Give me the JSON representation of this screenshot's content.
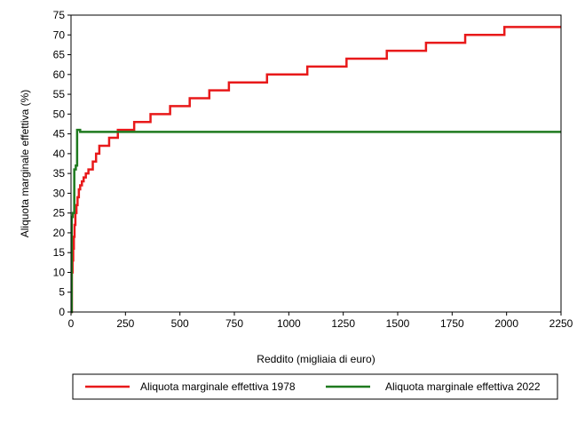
{
  "chart_data": {
    "type": "line",
    "title": "",
    "xlabel": "Reddito (migliaia di euro)",
    "ylabel": "Aliquota marginale effettiva (%)",
    "xlim": [
      0,
      2250
    ],
    "ylim": [
      0,
      75
    ],
    "x_ticks": [
      0,
      250,
      500,
      750,
      1000,
      1250,
      1500,
      1750,
      2000,
      2250
    ],
    "y_ticks": [
      0,
      5,
      10,
      15,
      20,
      25,
      30,
      35,
      40,
      45,
      50,
      55,
      60,
      65,
      70,
      75
    ],
    "grid": false,
    "legend_position": "bottom",
    "series": [
      {
        "name": "Aliquota marginale effettiva 1978",
        "color": "#e8191a",
        "step": true,
        "points": [
          [
            0,
            0
          ],
          [
            4,
            10
          ],
          [
            7,
            13
          ],
          [
            10,
            16
          ],
          [
            13,
            19
          ],
          [
            16,
            22
          ],
          [
            20,
            25
          ],
          [
            25,
            27
          ],
          [
            30,
            29
          ],
          [
            36,
            31
          ],
          [
            42,
            32
          ],
          [
            50,
            33
          ],
          [
            58,
            34
          ],
          [
            68,
            35
          ],
          [
            80,
            36
          ],
          [
            100,
            38
          ],
          [
            115,
            40
          ],
          [
            130,
            42
          ],
          [
            175,
            44
          ],
          [
            215,
            46
          ],
          [
            290,
            48
          ],
          [
            365,
            50
          ],
          [
            455,
            52
          ],
          [
            545,
            54
          ],
          [
            635,
            56
          ],
          [
            725,
            58
          ],
          [
            900,
            60
          ],
          [
            1085,
            62
          ],
          [
            1265,
            64
          ],
          [
            1450,
            66
          ],
          [
            1630,
            68
          ],
          [
            1810,
            70
          ],
          [
            1990,
            72
          ],
          [
            2250,
            72
          ]
        ]
      },
      {
        "name": "Aliquota marginale effettiva 2022",
        "color": "#1f7a1f",
        "step": true,
        "points": [
          [
            0,
            0
          ],
          [
            3,
            24
          ],
          [
            8,
            25
          ],
          [
            15,
            36
          ],
          [
            22,
            37
          ],
          [
            28,
            46
          ],
          [
            42,
            45.5
          ],
          [
            2250,
            45.5
          ]
        ]
      }
    ]
  }
}
